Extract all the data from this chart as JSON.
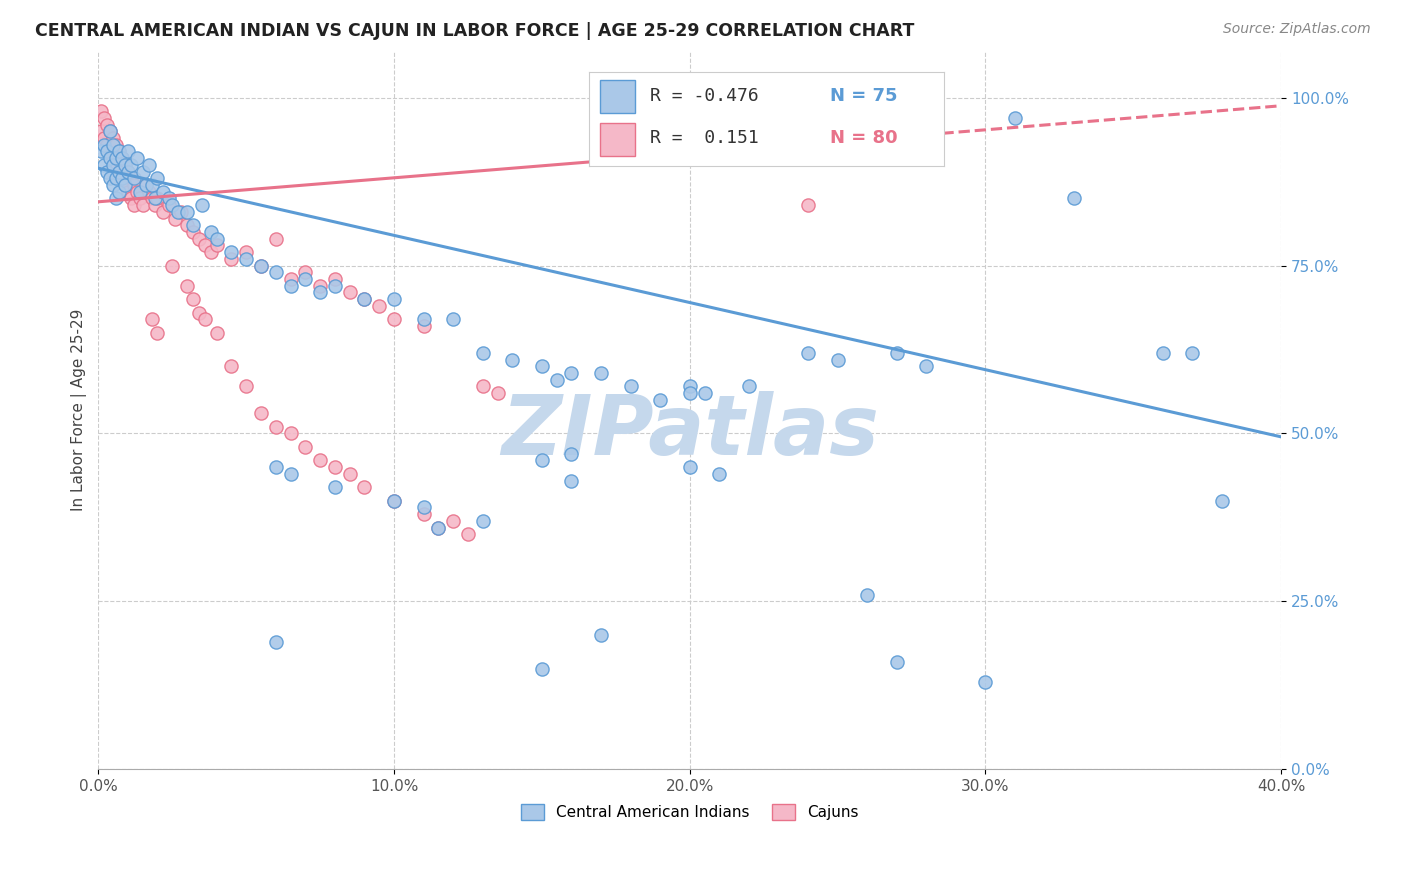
{
  "title": "CENTRAL AMERICAN INDIAN VS CAJUN IN LABOR FORCE | AGE 25-29 CORRELATION CHART",
  "source": "Source: ZipAtlas.com",
  "ylabel": "In Labor Force | Age 25-29",
  "xlim": [
    0.0,
    0.4
  ],
  "ylim": [
    0.0,
    1.07
  ],
  "yticks": [
    0.0,
    0.25,
    0.5,
    0.75,
    1.0
  ],
  "ytick_labels": [
    "0.0%",
    "25.0%",
    "50.0%",
    "75.0%",
    "100.0%"
  ],
  "xticks": [
    0.0,
    0.1,
    0.2,
    0.3,
    0.4
  ],
  "xtick_labels": [
    "0.0%",
    "10.0%",
    "20.0%",
    "30.0%",
    "40.0%"
  ],
  "blue_scatter": [
    [
      0.001,
      0.92
    ],
    [
      0.002,
      0.93
    ],
    [
      0.002,
      0.9
    ],
    [
      0.003,
      0.92
    ],
    [
      0.003,
      0.89
    ],
    [
      0.004,
      0.91
    ],
    [
      0.004,
      0.88
    ],
    [
      0.004,
      0.95
    ],
    [
      0.005,
      0.9
    ],
    [
      0.005,
      0.87
    ],
    [
      0.005,
      0.93
    ],
    [
      0.006,
      0.91
    ],
    [
      0.006,
      0.88
    ],
    [
      0.006,
      0.85
    ],
    [
      0.007,
      0.92
    ],
    [
      0.007,
      0.89
    ],
    [
      0.007,
      0.86
    ],
    [
      0.008,
      0.91
    ],
    [
      0.008,
      0.88
    ],
    [
      0.009,
      0.9
    ],
    [
      0.009,
      0.87
    ],
    [
      0.01,
      0.92
    ],
    [
      0.01,
      0.89
    ],
    [
      0.011,
      0.9
    ],
    [
      0.012,
      0.88
    ],
    [
      0.013,
      0.91
    ],
    [
      0.014,
      0.86
    ],
    [
      0.015,
      0.89
    ],
    [
      0.016,
      0.87
    ],
    [
      0.017,
      0.9
    ],
    [
      0.018,
      0.87
    ],
    [
      0.019,
      0.85
    ],
    [
      0.02,
      0.88
    ],
    [
      0.022,
      0.86
    ],
    [
      0.024,
      0.85
    ],
    [
      0.025,
      0.84
    ],
    [
      0.027,
      0.83
    ],
    [
      0.03,
      0.83
    ],
    [
      0.032,
      0.81
    ],
    [
      0.035,
      0.84
    ],
    [
      0.038,
      0.8
    ],
    [
      0.04,
      0.79
    ],
    [
      0.045,
      0.77
    ],
    [
      0.05,
      0.76
    ],
    [
      0.055,
      0.75
    ],
    [
      0.06,
      0.74
    ],
    [
      0.065,
      0.72
    ],
    [
      0.07,
      0.73
    ],
    [
      0.075,
      0.71
    ],
    [
      0.08,
      0.72
    ],
    [
      0.09,
      0.7
    ],
    [
      0.1,
      0.7
    ],
    [
      0.11,
      0.67
    ],
    [
      0.12,
      0.67
    ],
    [
      0.13,
      0.62
    ],
    [
      0.14,
      0.61
    ],
    [
      0.15,
      0.6
    ],
    [
      0.155,
      0.58
    ],
    [
      0.16,
      0.59
    ],
    [
      0.17,
      0.59
    ],
    [
      0.18,
      0.57
    ],
    [
      0.19,
      0.55
    ],
    [
      0.2,
      0.57
    ],
    [
      0.205,
      0.56
    ],
    [
      0.06,
      0.45
    ],
    [
      0.065,
      0.44
    ],
    [
      0.08,
      0.42
    ],
    [
      0.1,
      0.4
    ],
    [
      0.11,
      0.39
    ],
    [
      0.15,
      0.46
    ],
    [
      0.16,
      0.47
    ],
    [
      0.115,
      0.36
    ],
    [
      0.13,
      0.37
    ],
    [
      0.31,
      0.97
    ],
    [
      0.33,
      0.85
    ],
    [
      0.36,
      0.62
    ],
    [
      0.37,
      0.62
    ],
    [
      0.38,
      0.4
    ],
    [
      0.27,
      0.62
    ],
    [
      0.28,
      0.6
    ],
    [
      0.24,
      0.62
    ],
    [
      0.25,
      0.61
    ],
    [
      0.22,
      0.57
    ],
    [
      0.2,
      0.56
    ],
    [
      0.2,
      0.45
    ],
    [
      0.21,
      0.44
    ],
    [
      0.16,
      0.43
    ],
    [
      0.06,
      0.19
    ],
    [
      0.17,
      0.2
    ],
    [
      0.15,
      0.15
    ],
    [
      0.26,
      0.26
    ],
    [
      0.27,
      0.16
    ],
    [
      0.3,
      0.13
    ]
  ],
  "pink_scatter": [
    [
      0.001,
      0.98
    ],
    [
      0.001,
      0.95
    ],
    [
      0.002,
      0.97
    ],
    [
      0.002,
      0.94
    ],
    [
      0.003,
      0.96
    ],
    [
      0.003,
      0.93
    ],
    [
      0.004,
      0.95
    ],
    [
      0.004,
      0.92
    ],
    [
      0.005,
      0.94
    ],
    [
      0.005,
      0.91
    ],
    [
      0.006,
      0.93
    ],
    [
      0.006,
      0.9
    ],
    [
      0.007,
      0.92
    ],
    [
      0.007,
      0.89
    ],
    [
      0.008,
      0.91
    ],
    [
      0.008,
      0.88
    ],
    [
      0.009,
      0.9
    ],
    [
      0.009,
      0.87
    ],
    [
      0.01,
      0.89
    ],
    [
      0.01,
      0.86
    ],
    [
      0.011,
      0.88
    ],
    [
      0.011,
      0.85
    ],
    [
      0.012,
      0.87
    ],
    [
      0.012,
      0.84
    ],
    [
      0.013,
      0.86
    ],
    [
      0.014,
      0.85
    ],
    [
      0.015,
      0.84
    ],
    [
      0.016,
      0.87
    ],
    [
      0.017,
      0.86
    ],
    [
      0.018,
      0.85
    ],
    [
      0.019,
      0.84
    ],
    [
      0.02,
      0.85
    ],
    [
      0.022,
      0.83
    ],
    [
      0.024,
      0.84
    ],
    [
      0.026,
      0.82
    ],
    [
      0.028,
      0.83
    ],
    [
      0.03,
      0.81
    ],
    [
      0.032,
      0.8
    ],
    [
      0.034,
      0.79
    ],
    [
      0.036,
      0.78
    ],
    [
      0.038,
      0.77
    ],
    [
      0.04,
      0.78
    ],
    [
      0.045,
      0.76
    ],
    [
      0.05,
      0.77
    ],
    [
      0.055,
      0.75
    ],
    [
      0.06,
      0.79
    ],
    [
      0.065,
      0.73
    ],
    [
      0.07,
      0.74
    ],
    [
      0.075,
      0.72
    ],
    [
      0.08,
      0.73
    ],
    [
      0.085,
      0.71
    ],
    [
      0.09,
      0.7
    ],
    [
      0.095,
      0.69
    ],
    [
      0.1,
      0.67
    ],
    [
      0.11,
      0.66
    ],
    [
      0.018,
      0.67
    ],
    [
      0.02,
      0.65
    ],
    [
      0.025,
      0.75
    ],
    [
      0.03,
      0.72
    ],
    [
      0.032,
      0.7
    ],
    [
      0.034,
      0.68
    ],
    [
      0.036,
      0.67
    ],
    [
      0.04,
      0.65
    ],
    [
      0.045,
      0.6
    ],
    [
      0.05,
      0.57
    ],
    [
      0.055,
      0.53
    ],
    [
      0.06,
      0.51
    ],
    [
      0.065,
      0.5
    ],
    [
      0.07,
      0.48
    ],
    [
      0.075,
      0.46
    ],
    [
      0.08,
      0.45
    ],
    [
      0.085,
      0.44
    ],
    [
      0.09,
      0.42
    ],
    [
      0.1,
      0.4
    ],
    [
      0.11,
      0.38
    ],
    [
      0.115,
      0.36
    ],
    [
      0.12,
      0.37
    ],
    [
      0.125,
      0.35
    ],
    [
      0.13,
      0.57
    ],
    [
      0.135,
      0.56
    ],
    [
      0.24,
      0.84
    ]
  ],
  "blue_line": {
    "x0": 0.0,
    "y0": 0.895,
    "x1": 0.4,
    "y1": 0.495
  },
  "pink_line_solid": {
    "x0": 0.0,
    "y0": 0.845,
    "x1": 0.28,
    "y1": 0.945
  },
  "pink_line_dashed": {
    "x0": 0.28,
    "y0": 0.945,
    "x1": 0.4,
    "y1": 0.988
  },
  "blue_color": "#5b9bd5",
  "pink_color": "#e8728a",
  "blue_fill": "#aac8e8",
  "pink_fill": "#f5b8c8",
  "watermark_text": "ZIPatlas",
  "watermark_color": "#c5d8ec",
  "background_color": "#ffffff",
  "grid_color": "#cccccc",
  "ytick_color": "#5b9bd5",
  "xtick_color": "#555555"
}
